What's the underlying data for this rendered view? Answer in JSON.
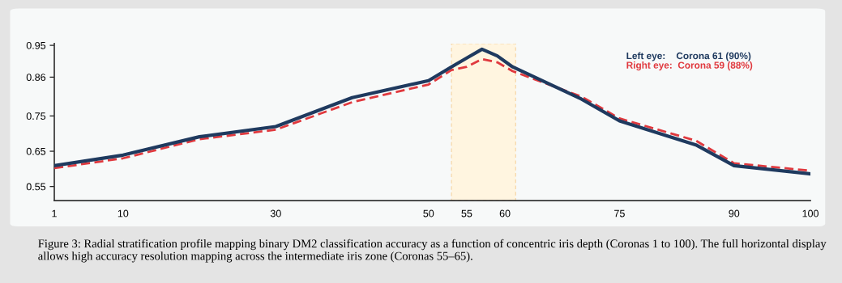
{
  "chart_data": {
    "type": "line",
    "x": [
      1,
      10,
      20,
      30,
      40,
      50,
      53,
      55,
      57,
      59,
      61,
      70,
      75,
      85,
      90,
      100
    ],
    "series": [
      {
        "name": "Left eye:    Corona 61 (90%)",
        "color": "#1f3a5f",
        "line_style": "solid",
        "values": [
          0.609,
          0.639,
          0.691,
          0.72,
          0.802,
          0.85,
          0.889,
          0.914,
          0.939,
          0.92,
          0.889,
          0.798,
          0.736,
          0.668,
          0.609,
          0.586
        ]
      },
      {
        "name": "Right eye:  Corona 59 (88%)",
        "color": "#e0393e",
        "line_style": "dashed",
        "values": [
          0.602,
          0.63,
          0.684,
          0.711,
          0.789,
          0.839,
          0.88,
          0.889,
          0.911,
          0.902,
          0.877,
          0.805,
          0.743,
          0.68,
          0.616,
          0.595
        ]
      }
    ],
    "xlim": [
      1,
      100
    ],
    "xticks": [
      1,
      10,
      30,
      50,
      55,
      60,
      75,
      90,
      100
    ],
    "ylim": [
      0.51,
      0.955
    ],
    "yticks": [
      0.55,
      0.65,
      0.75,
      0.86,
      0.95
    ],
    "bands": [
      {
        "axis": "x",
        "from": 53,
        "to": 61.4,
        "color": "#fff5e0"
      }
    ],
    "grid": false,
    "legend": "top right",
    "marker": "none",
    "annotations": [
      "Figure 3: Radial stratification profile mapping binary DM2 classification accuracy as a function of concentric iris depth (Coronas 1 to 100). The full horizontal display allows high accuracy resolution mapping across the intermediate iris zone (Coronas 55–65)."
    ]
  }
}
